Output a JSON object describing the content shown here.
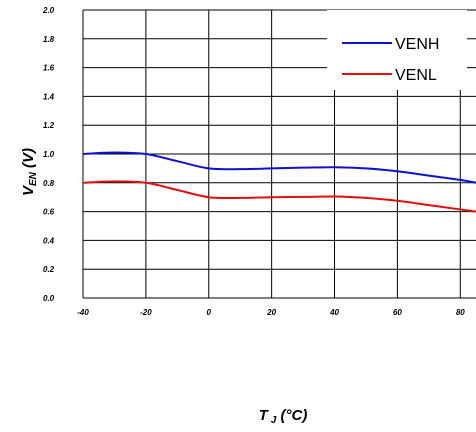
{
  "chart_data": {
    "type": "line",
    "xlabel_main": "T",
    "xlabel_sub": "J",
    "xlabel_unit": " (°C)",
    "ylabel_main": "V",
    "ylabel_sub": "EN",
    "ylabel_unit": " (V)",
    "xlim": [
      -40,
      85
    ],
    "ylim": [
      0,
      2.0
    ],
    "x_ticks": [
      "-40",
      "-20",
      "0",
      "20",
      "40",
      "60",
      "80"
    ],
    "x_tick_values": [
      -40,
      -20,
      0,
      20,
      40,
      60,
      80
    ],
    "y_ticks": [
      "0.0",
      "0.2",
      "0.4",
      "0.6",
      "0.8",
      "1.0",
      "1.2",
      "1.4",
      "1.6",
      "1.8",
      "2.0"
    ],
    "y_tick_values": [
      0,
      0.2,
      0.4,
      0.6,
      0.8,
      1.0,
      1.2,
      1.4,
      1.6,
      1.8,
      2.0
    ],
    "grid": true,
    "legend_position": "top-right",
    "series": [
      {
        "name": "VENH",
        "color": "#1010d0",
        "x": [
          -40,
          -30,
          -20,
          -10,
          0,
          10,
          20,
          30,
          40,
          50,
          60,
          70,
          80,
          85
        ],
        "y": [
          1.0,
          1.01,
          1.0,
          0.95,
          0.9,
          0.895,
          0.9,
          0.905,
          0.908,
          0.9,
          0.88,
          0.85,
          0.82,
          0.8
        ]
      },
      {
        "name": "VENL",
        "color": "#e01010",
        "x": [
          -40,
          -30,
          -20,
          -10,
          0,
          10,
          20,
          30,
          40,
          50,
          60,
          70,
          80,
          85
        ],
        "y": [
          0.8,
          0.81,
          0.8,
          0.75,
          0.7,
          0.695,
          0.7,
          0.702,
          0.705,
          0.695,
          0.675,
          0.645,
          0.615,
          0.6
        ]
      }
    ]
  }
}
